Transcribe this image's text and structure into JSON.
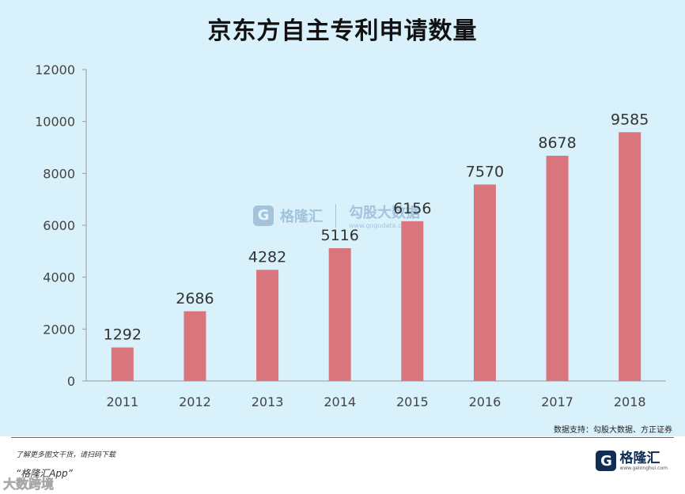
{
  "chart_data": {
    "type": "bar",
    "title": "京东方自主专利申请数量",
    "categories": [
      "2011",
      "2012",
      "2013",
      "2014",
      "2015",
      "2016",
      "2017",
      "2018"
    ],
    "values": [
      1292,
      2686,
      4282,
      5116,
      6156,
      7570,
      8678,
      9585
    ],
    "data_labels": [
      "1292",
      "2686",
      "4282",
      "5116",
      "6156",
      "7570",
      "8678",
      "9585"
    ],
    "yticks": [
      "0",
      "2000",
      "4000",
      "6000",
      "8000",
      "10000",
      "12000"
    ],
    "ylim": [
      0,
      12000
    ],
    "xlabel": "",
    "ylabel": "",
    "grid": false,
    "bar_color": "#d9757c"
  },
  "source": "数据支持：勾股大数据、方正证券",
  "footer": {
    "note": "了解更多图文干货，请扫码下载",
    "app": "“格隆汇App”",
    "watermark": "大数跨境"
  },
  "logo": {
    "mark": "G",
    "name": "格隆汇",
    "url": "www.gelonghui.com"
  },
  "watermark": {
    "mark": "G",
    "name": "格隆汇",
    "brand": "勾股大数据",
    "url": "www.gogudata.com"
  },
  "colors": {
    "background": "#d9f1fb",
    "bar": "#d9757c",
    "axis": "#999999"
  }
}
